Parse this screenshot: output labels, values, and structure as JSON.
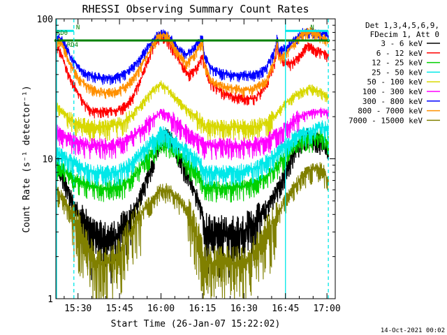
{
  "chart_data": {
    "type": "line",
    "title": "RHESSI Observing Summary Count Rates",
    "xlabel": "Start Time (26-Jan-07 15:22:02)",
    "ylabel": "Count Rate (s⁻¹ detector⁻¹)",
    "x_unit": "minutes after 15:22:02",
    "xlim": [
      0,
      101
    ],
    "ylim": [
      1,
      100
    ],
    "y_scale": "log",
    "x_ticks": [
      {
        "label": "15:30",
        "x": 8
      },
      {
        "label": "15:45",
        "x": 23
      },
      {
        "label": "16:00",
        "x": 38
      },
      {
        "label": "16:15",
        "x": 53
      },
      {
        "label": "16:30",
        "x": 68
      },
      {
        "label": "16:45",
        "x": 83
      },
      {
        "label": "17:00",
        "x": 98
      }
    ],
    "y_ticks": [
      {
        "label": "1",
        "y": 1
      },
      {
        "label": "10",
        "y": 10
      },
      {
        "label": "100",
        "y": 100
      }
    ],
    "legend": {
      "placement": "right",
      "header": [
        "Det 1,3,4,5,6,9,",
        "FDecim 1, Att 0"
      ]
    },
    "series": [
      {
        "name": "3 - 6 keV",
        "color": "#000000",
        "x": [
          0,
          3,
          6,
          10,
          14,
          18,
          22,
          26,
          30,
          34,
          37,
          39,
          42,
          46,
          50,
          53,
          53.5,
          56,
          60,
          64,
          68,
          72,
          76,
          80,
          83,
          86,
          89,
          92,
          96,
          98.5
        ],
        "y": [
          10,
          7,
          5,
          3.5,
          2.8,
          2.7,
          2.8,
          3.5,
          5,
          8,
          12,
          15,
          14,
          9,
          6,
          4,
          3.2,
          3,
          3,
          3,
          3.1,
          3.5,
          4.5,
          6,
          8,
          11,
          14,
          15,
          13,
          11
        ]
      },
      {
        "name": "6 - 12 keV",
        "color": "#ff0000",
        "x": [
          0,
          1,
          2,
          3,
          5,
          8,
          10,
          13,
          16,
          19,
          22,
          25,
          28,
          31,
          34,
          36,
          38,
          40,
          42,
          45,
          48,
          51,
          53,
          53.5,
          56,
          60,
          64,
          68,
          72,
          76,
          79,
          80,
          80.5,
          82,
          85,
          88,
          91,
          94,
          96,
          98.5
        ],
        "y": [
          60,
          62,
          55,
          48,
          38,
          30,
          25,
          22,
          22,
          22,
          22,
          24,
          28,
          38,
          55,
          70,
          75,
          72,
          62,
          48,
          40,
          45,
          55,
          48,
          35,
          30,
          28,
          27,
          27,
          33,
          48,
          65,
          58,
          50,
          48,
          55,
          65,
          60,
          58,
          55
        ]
      },
      {
        "name": "12 - 25 keV",
        "color": "#00d000",
        "x": [
          0,
          4,
          8,
          12,
          16,
          20,
          24,
          28,
          32,
          36,
          38,
          40,
          44,
          48,
          52,
          53.5,
          57,
          62,
          67,
          72,
          76,
          80,
          84,
          88,
          92,
          96,
          98.5
        ],
        "y": [
          9,
          8,
          7,
          6.5,
          6.2,
          6.2,
          6.4,
          7.5,
          9.5,
          12,
          13,
          13,
          11,
          9,
          7.5,
          6.2,
          6.2,
          6.2,
          6.3,
          6.6,
          7.5,
          9,
          11,
          13,
          14,
          14.5,
          13
        ]
      },
      {
        "name": "25 - 50 keV",
        "color": "#00e8e8",
        "x": [
          0,
          4,
          8,
          12,
          16,
          20,
          24,
          28,
          32,
          36,
          38,
          40,
          44,
          48,
          52,
          53.5,
          57,
          62,
          67,
          72,
          76,
          80,
          84,
          88,
          92,
          96,
          98.5
        ],
        "y": [
          11,
          10,
          9,
          8.3,
          8,
          8,
          8.3,
          9.5,
          11.5,
          14,
          15.5,
          15,
          13,
          11,
          9.5,
          8,
          8,
          8,
          8.2,
          8.5,
          9.5,
          11,
          13,
          15,
          16,
          17,
          16
        ]
      },
      {
        "name": "50 - 100 keV",
        "color": "#d8d800",
        "x": [
          0,
          4,
          8,
          12,
          16,
          20,
          24,
          28,
          32,
          36,
          38,
          40,
          44,
          48,
          52,
          53.5,
          57,
          62,
          67,
          72,
          76,
          80,
          84,
          88,
          92,
          96,
          98.5
        ],
        "y": [
          24,
          20,
          18,
          17,
          17,
          17,
          18,
          21,
          26,
          32,
          34,
          32,
          26,
          22,
          19,
          17,
          17,
          17,
          17,
          17,
          18,
          21,
          26,
          30,
          32,
          30,
          28
        ]
      },
      {
        "name": "100 - 300 keV",
        "color": "#ff00ff",
        "x": [
          0,
          4,
          8,
          12,
          16,
          20,
          24,
          28,
          32,
          36,
          38,
          40,
          44,
          48,
          52,
          53.5,
          57,
          62,
          67,
          72,
          76,
          80,
          84,
          88,
          92,
          96,
          98.5
        ],
        "y": [
          16,
          14,
          13,
          12.5,
          12.5,
          12.5,
          13,
          14.5,
          17,
          20,
          21.5,
          21,
          18,
          15,
          13.5,
          12.5,
          12.5,
          12.5,
          12.5,
          12.7,
          13.5,
          15,
          17.5,
          20,
          21.5,
          22,
          21
        ]
      },
      {
        "name": "300 - 800 keV",
        "color": "#0000ff",
        "x": [
          0,
          1,
          3,
          5,
          8,
          11,
          14,
          17,
          20,
          23,
          26,
          29,
          32,
          35,
          37,
          39,
          41,
          44,
          47,
          50,
          52,
          53,
          53.5,
          56,
          60,
          64,
          68,
          72,
          76,
          79,
          80,
          80.5,
          83,
          86,
          89,
          92,
          95,
          98.5
        ],
        "y": [
          72,
          74,
          68,
          55,
          45,
          40,
          39,
          38,
          38,
          39,
          42,
          48,
          58,
          70,
          78,
          80,
          75,
          62,
          55,
          62,
          70,
          75,
          55,
          44,
          41,
          40,
          40,
          40,
          44,
          58,
          75,
          60,
          62,
          70,
          80,
          82,
          78,
          76
        ]
      },
      {
        "name": "800 - 7000 keV",
        "color": "#ff9000",
        "x": [
          0,
          1,
          3,
          5,
          8,
          11,
          14,
          17,
          20,
          23,
          26,
          29,
          32,
          35,
          37,
          39,
          41,
          44,
          47,
          50,
          52,
          53,
          53.5,
          56,
          60,
          64,
          68,
          72,
          76,
          79,
          80,
          80.5,
          83,
          86,
          89,
          92,
          95,
          98.5
        ],
        "y": [
          68,
          70,
          62,
          48,
          38,
          33,
          31,
          30,
          30,
          31,
          34,
          40,
          50,
          65,
          75,
          78,
          72,
          58,
          48,
          55,
          65,
          70,
          48,
          36,
          33,
          32,
          31,
          32,
          36,
          50,
          70,
          52,
          56,
          66,
          78,
          82,
          76,
          70
        ]
      },
      {
        "name": "7000 - 15000 keV",
        "color": "#808000",
        "x": [
          0,
          3,
          6,
          9,
          11,
          13,
          15,
          17,
          19,
          21,
          23,
          25,
          27,
          30,
          33,
          36,
          38,
          40,
          43,
          46,
          49,
          51,
          53,
          53.5,
          55,
          57,
          60,
          63,
          66,
          69,
          72,
          75,
          78,
          81,
          84,
          87,
          90,
          93,
          96,
          98.5
        ],
        "y": [
          6,
          5,
          4,
          3,
          2.4,
          2,
          1.8,
          1.8,
          1.8,
          1.9,
          2.1,
          2.5,
          3,
          3.8,
          4.6,
          5.5,
          6,
          6,
          5.5,
          4.6,
          3.6,
          2.8,
          2.2,
          1.9,
          1.8,
          1.8,
          1.8,
          1.8,
          1.8,
          1.9,
          2.2,
          2.7,
          3.4,
          4.3,
          5.4,
          6.6,
          7.8,
          8.5,
          8.5,
          7
        ]
      }
    ],
    "overlays": {
      "green_lines": {
        "color": "#008000",
        "y": 70,
        "segments": [
          [
            0,
            53
          ],
          [
            53,
            80
          ],
          [
            80,
            98.5
          ]
        ]
      },
      "cyan_top": {
        "color": "#00e8e8",
        "y": 82,
        "segments": [
          [
            0,
            6.5
          ],
          [
            83,
            98.5
          ]
        ]
      },
      "cyan_solid_vlines": [
        0,
        83
      ],
      "cyan_dashed_vlines": [
        6.5,
        98.5
      ],
      "labels": [
        {
          "text": "RD0",
          "x": 0.2,
          "y": 77
        },
        {
          "text": "N",
          "x": 7.3,
          "y": 84
        },
        {
          "text": "RD4",
          "x": 4,
          "y": 63
        },
        {
          "text": "N",
          "x": 92,
          "y": 84
        }
      ]
    }
  },
  "timestamp": "14-Oct-2021 00:02"
}
